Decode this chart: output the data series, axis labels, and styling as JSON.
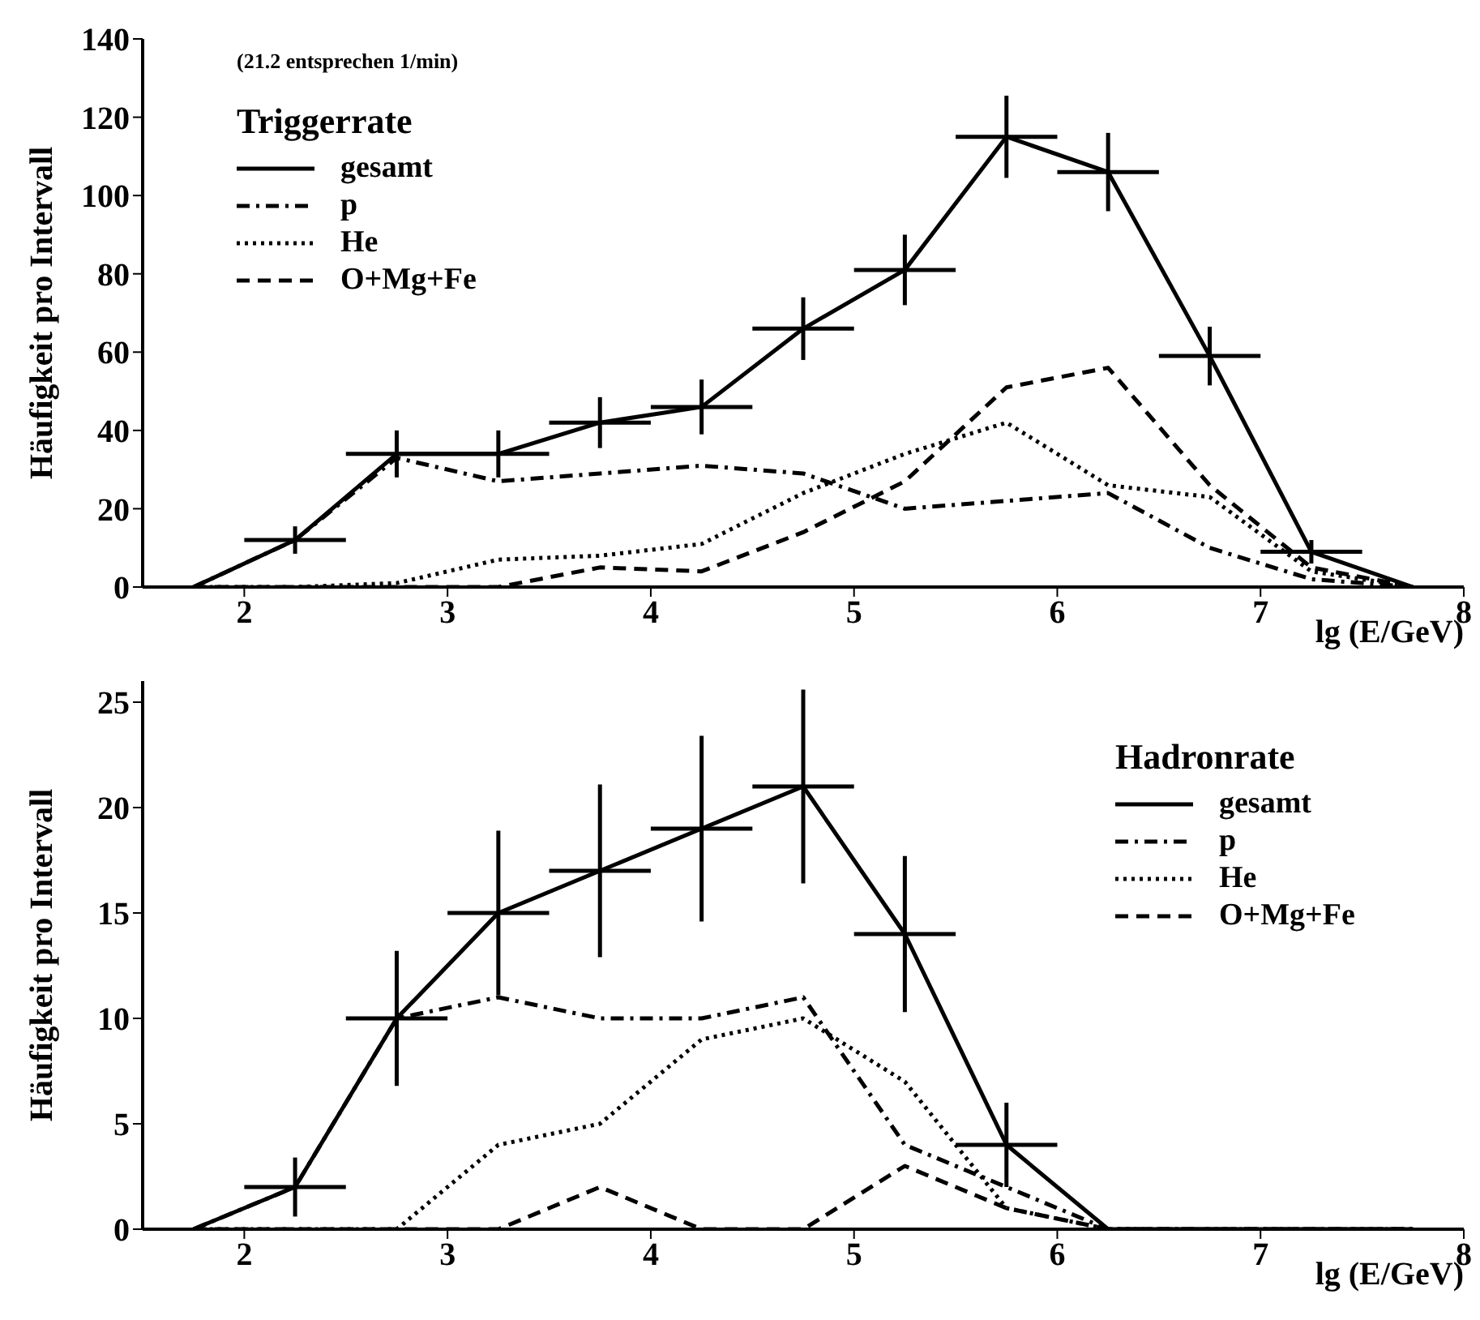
{
  "chart_data": [
    {
      "type": "line",
      "xlabel": "lg (E/GeV)",
      "ylabel": "Häufigkeit pro Intervall",
      "legend_title": "Triggerrate",
      "annotations": [
        "(21.2 entsprechen 1/min)"
      ],
      "legend": "top left",
      "marker": "none",
      "xlim": [
        1.5,
        8
      ],
      "xticks": [
        2,
        3,
        4,
        5,
        6,
        7,
        8
      ],
      "ylim": [
        0,
        140
      ],
      "yticks": [
        0,
        20,
        40,
        60,
        80,
        100,
        120,
        140
      ],
      "x": [
        1.75,
        2.25,
        2.75,
        3.25,
        3.75,
        4.25,
        4.75,
        5.25,
        5.75,
        6.25,
        6.75,
        7.25,
        7.75
      ],
      "series": [
        {
          "name": "gesamt",
          "color": "#000000",
          "line_style": "solid",
          "values": [
            0,
            12,
            34,
            34,
            42,
            46,
            66,
            81,
            115,
            106,
            59,
            9,
            0
          ],
          "errors": [
            null,
            3.5,
            6,
            6,
            6.5,
            7,
            8,
            9,
            10.5,
            10,
            7.5,
            3,
            null
          ],
          "xerrors": [
            null,
            0.25,
            0.25,
            0.25,
            0.25,
            0.25,
            0.25,
            0.25,
            0.25,
            0.25,
            0.25,
            0.25,
            null
          ]
        },
        {
          "name": "p",
          "color": "#000000",
          "line_style": "dashdot",
          "values": [
            0,
            12,
            33,
            27,
            29,
            31,
            29,
            20,
            22,
            24,
            10,
            2,
            0
          ]
        },
        {
          "name": "He",
          "color": "#000000",
          "line_style": "dotted",
          "values": [
            0,
            0,
            1,
            7,
            8,
            11,
            24,
            34,
            42,
            26,
            23,
            4,
            0
          ]
        },
        {
          "name": "O+Mg+Fe",
          "color": "#000000",
          "line_style": "dashed",
          "values": [
            0,
            0,
            0,
            0,
            5,
            4,
            14,
            27,
            51,
            56,
            26,
            5,
            0
          ]
        }
      ]
    },
    {
      "type": "line",
      "xlabel": "lg (E/GeV)",
      "ylabel": "Häufigkeit pro Intervall",
      "legend_title": "Hadronrate",
      "legend": "top right",
      "marker": "none",
      "xlim": [
        1.5,
        8
      ],
      "xticks": [
        2,
        3,
        4,
        5,
        6,
        7,
        8
      ],
      "ylim": [
        0,
        26
      ],
      "yticks": [
        0,
        5,
        10,
        15,
        20,
        25
      ],
      "x": [
        1.75,
        2.25,
        2.75,
        3.25,
        3.75,
        4.25,
        4.75,
        5.25,
        5.75,
        6.25,
        6.75,
        7.25,
        7.75
      ],
      "series": [
        {
          "name": "gesamt",
          "color": "#000000",
          "line_style": "solid",
          "values": [
            0,
            2,
            10,
            15,
            17,
            19,
            21,
            14,
            4,
            0,
            0,
            0,
            0
          ],
          "errors": [
            null,
            1.4,
            3.2,
            3.9,
            4.1,
            4.4,
            4.6,
            3.7,
            2,
            null,
            null,
            null,
            null
          ],
          "xerrors": [
            null,
            0.25,
            0.25,
            0.25,
            0.25,
            0.25,
            0.25,
            0.25,
            0.25,
            null,
            null,
            null,
            null
          ]
        },
        {
          "name": "p",
          "color": "#000000",
          "line_style": "dashdot",
          "values": [
            0,
            2,
            10,
            11,
            10,
            10,
            11,
            4,
            2,
            0,
            0,
            0,
            0
          ]
        },
        {
          "name": "He",
          "color": "#000000",
          "line_style": "dotted",
          "values": [
            0,
            0,
            0,
            4,
            5,
            9,
            10,
            7,
            1,
            0,
            0,
            0,
            0
          ]
        },
        {
          "name": "O+Mg+Fe",
          "color": "#000000",
          "line_style": "dashed",
          "values": [
            0,
            0,
            0,
            0,
            2,
            0,
            0,
            3,
            1,
            0,
            0,
            0,
            0
          ]
        }
      ]
    }
  ]
}
